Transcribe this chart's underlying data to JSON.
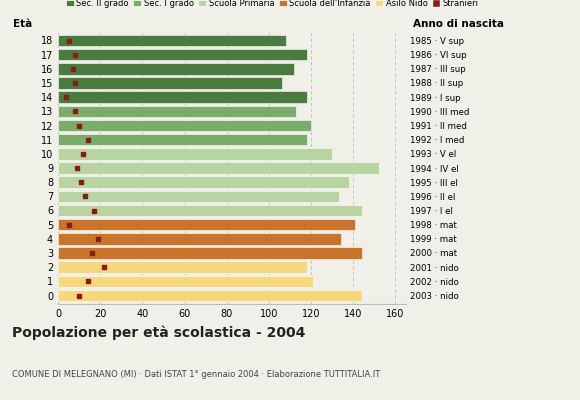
{
  "ages": [
    18,
    17,
    16,
    15,
    14,
    13,
    12,
    11,
    10,
    9,
    8,
    7,
    6,
    5,
    4,
    3,
    2,
    1,
    0
  ],
  "anno_nascita": [
    "1985 · V sup",
    "1986 · VI sup",
    "1987 · III sup",
    "1988 · II sup",
    "1989 · I sup",
    "1990 · III med",
    "1991 · II med",
    "1992 · I med",
    "1993 · V el",
    "1994 · IV el",
    "1995 · III el",
    "1996 · II el",
    "1997 · I el",
    "1998 · mat",
    "1999 · mat",
    "2000 · mat",
    "2001 · nido",
    "2002 · nido",
    "2003 · nido"
  ],
  "bar_values": [
    108,
    118,
    112,
    106,
    118,
    113,
    120,
    118,
    130,
    152,
    138,
    133,
    144,
    141,
    134,
    144,
    118,
    121,
    144
  ],
  "stranieri": [
    5,
    8,
    7,
    8,
    4,
    8,
    10,
    14,
    12,
    9,
    11,
    13,
    17,
    5,
    19,
    16,
    22,
    14,
    10
  ],
  "bar_colors": [
    "#4a7c3f",
    "#4a7c3f",
    "#4a7c3f",
    "#4a7c3f",
    "#4a7c3f",
    "#7aad6c",
    "#7aad6c",
    "#7aad6c",
    "#b8d4a0",
    "#b8d4a0",
    "#b8d4a0",
    "#b8d4a0",
    "#b8d4a0",
    "#c8742a",
    "#c8742a",
    "#c8742a",
    "#f5d87c",
    "#f5d87c",
    "#f5d87c"
  ],
  "categories": [
    "Sec. II grado",
    "Sec. I grado",
    "Scuola Primaria",
    "Scuola dell'Infanzia",
    "Asilo Nido",
    "Stranieri"
  ],
  "cat_colors": [
    "#4a7c3f",
    "#7aad6c",
    "#b8d4a0",
    "#c8742a",
    "#f5d87c",
    "#8b1a1a"
  ],
  "title": "Popolazione per età scolastica - 2004",
  "subtitle": "COMUNE DI MELEGNANO (MI) · Dati ISTAT 1° gennaio 2004 · Elaborazione TUTTITALIA.IT",
  "xlabel_eta": "Età",
  "xlabel_anno": "Anno di nascita",
  "xlim": [
    0,
    165
  ],
  "bg_color": "#f0f0e8",
  "grid_color": "#bbbbbb",
  "bar_height": 0.82
}
